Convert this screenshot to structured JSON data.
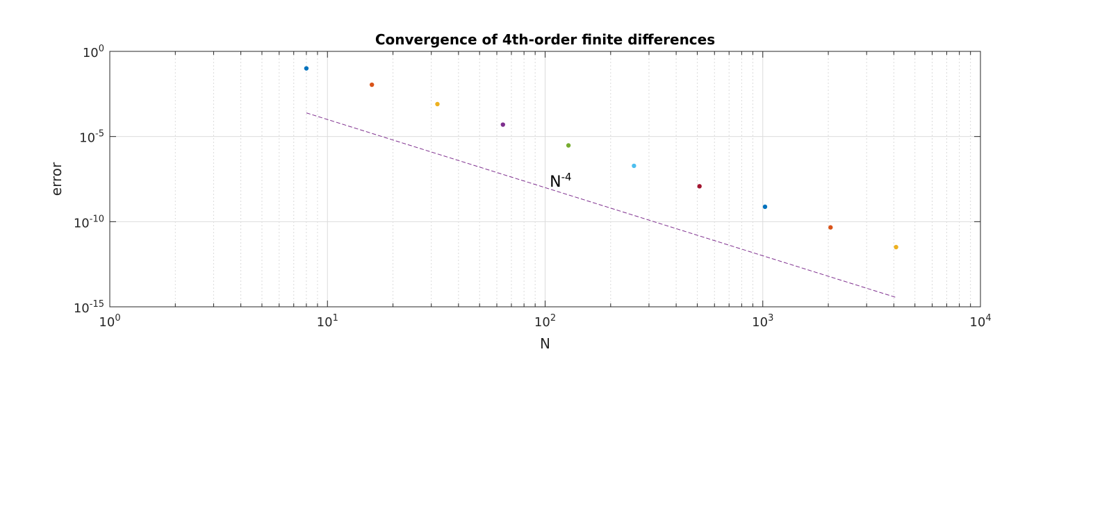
{
  "chart_data": {
    "type": "scatter",
    "title": "Convergence of 4th-order finite differences",
    "xlabel": "N",
    "ylabel": "error",
    "x_scale": "log",
    "y_scale": "log",
    "xlim": [
      1,
      10000
    ],
    "ylim": [
      1e-15,
      1
    ],
    "grid": true,
    "minor_grid_x": true,
    "x_ticks": [
      {
        "value": 1,
        "base": "10",
        "exp": "0"
      },
      {
        "value": 10,
        "base": "10",
        "exp": "1"
      },
      {
        "value": 100,
        "base": "10",
        "exp": "2"
      },
      {
        "value": 1000,
        "base": "10",
        "exp": "3"
      },
      {
        "value": 10000,
        "base": "10",
        "exp": "4"
      }
    ],
    "y_ticks": [
      {
        "value": 1,
        "base": "10",
        "exp": "0"
      },
      {
        "value": 1e-05,
        "base": "10",
        "exp": "-5"
      },
      {
        "value": 1e-10,
        "base": "10",
        "exp": "-10"
      },
      {
        "value": 1e-15,
        "base": "10",
        "exp": "-15"
      }
    ],
    "points": [
      {
        "x": 8,
        "y": 0.1,
        "color": "#0072bd"
      },
      {
        "x": 16,
        "y": 0.011,
        "color": "#d95319"
      },
      {
        "x": 32,
        "y": 0.0008,
        "color": "#edb120"
      },
      {
        "x": 64,
        "y": 5e-05,
        "color": "#7e2f8e"
      },
      {
        "x": 128,
        "y": 3e-06,
        "color": "#77ac30"
      },
      {
        "x": 256,
        "y": 1.9e-07,
        "color": "#4dbeee"
      },
      {
        "x": 512,
        "y": 1.2e-08,
        "color": "#a2142f"
      },
      {
        "x": 1024,
        "y": 7.5e-10,
        "color": "#0072bd"
      },
      {
        "x": 2048,
        "y": 4.6e-11,
        "color": "#d95319"
      },
      {
        "x": 4096,
        "y": 3.2e-12,
        "color": "#edb120"
      }
    ],
    "reference_line": {
      "x": [
        8,
        4096
      ],
      "y": [
        0.000244,
        3.55e-15
      ],
      "color": "#7e2f8e",
      "style": "dashed"
    },
    "annotation": {
      "base": "N",
      "exp": "-4",
      "x": 105,
      "y": 2e-08
    }
  }
}
